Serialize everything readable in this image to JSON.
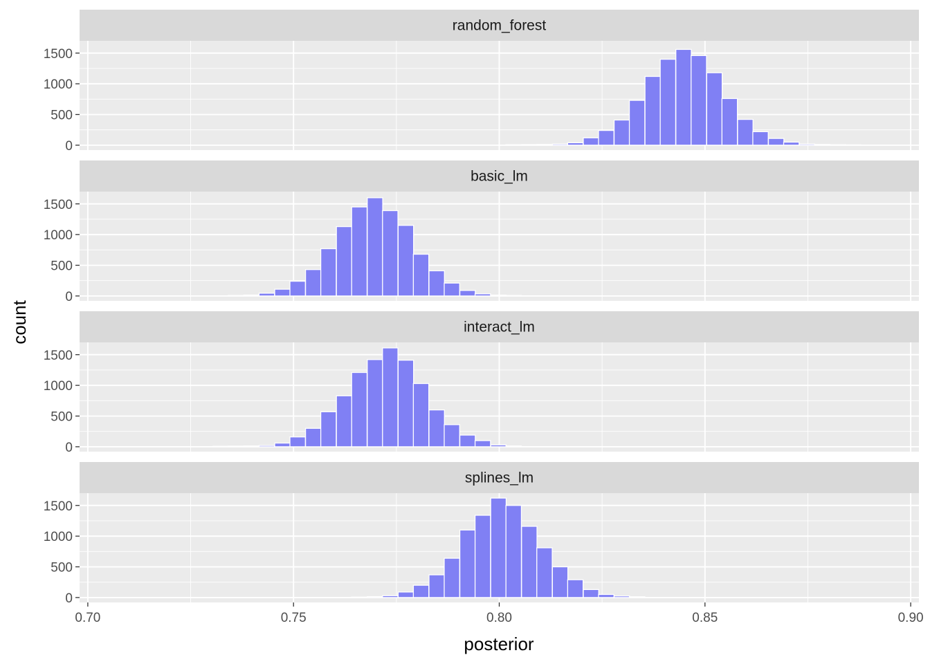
{
  "chart_data": {
    "type": "histogram",
    "xlabel": "posterior",
    "ylabel": "count",
    "xlim": [
      0.698,
      0.902
    ],
    "ylim": [
      -80,
      1700
    ],
    "bin_width": 0.00375,
    "x_ticks": [
      0.7,
      0.75,
      0.8,
      0.85,
      0.9
    ],
    "x_tick_labels": [
      "0.70",
      "0.75",
      "0.80",
      "0.85",
      "0.90"
    ],
    "y_ticks": [
      0,
      500,
      1000,
      1500
    ],
    "y_tick_labels": [
      "0",
      "500",
      "1000",
      "1500"
    ],
    "grid": true,
    "fill_color": "#8080f4",
    "bar_outline": "#ffffff",
    "panel_bg": "#ebebeb",
    "strip_bg": "#d9d9d9",
    "panels": [
      {
        "label": "random_forest",
        "bins": [
          {
            "x": 0.8035,
            "y": 8
          },
          {
            "x": 0.8073,
            "y": 10
          },
          {
            "x": 0.811,
            "y": 12
          },
          {
            "x": 0.8148,
            "y": 18
          },
          {
            "x": 0.8185,
            "y": 40
          },
          {
            "x": 0.8223,
            "y": 120
          },
          {
            "x": 0.826,
            "y": 240
          },
          {
            "x": 0.8298,
            "y": 410
          },
          {
            "x": 0.8335,
            "y": 730
          },
          {
            "x": 0.8373,
            "y": 1120
          },
          {
            "x": 0.841,
            "y": 1400
          },
          {
            "x": 0.8448,
            "y": 1560
          },
          {
            "x": 0.8485,
            "y": 1460
          },
          {
            "x": 0.8523,
            "y": 1180
          },
          {
            "x": 0.856,
            "y": 760
          },
          {
            "x": 0.8598,
            "y": 420
          },
          {
            "x": 0.8635,
            "y": 220
          },
          {
            "x": 0.8673,
            "y": 110
          },
          {
            "x": 0.871,
            "y": 50
          },
          {
            "x": 0.8748,
            "y": 18
          },
          {
            "x": 0.8785,
            "y": 12
          },
          {
            "x": 0.8823,
            "y": 8
          },
          {
            "x": 0.886,
            "y": 6
          }
        ]
      },
      {
        "label": "basic_lm",
        "bins": [
          {
            "x": 0.736,
            "y": 8
          },
          {
            "x": 0.7398,
            "y": 15
          },
          {
            "x": 0.7435,
            "y": 45
          },
          {
            "x": 0.7473,
            "y": 110
          },
          {
            "x": 0.751,
            "y": 240
          },
          {
            "x": 0.7548,
            "y": 430
          },
          {
            "x": 0.7585,
            "y": 770
          },
          {
            "x": 0.7623,
            "y": 1130
          },
          {
            "x": 0.766,
            "y": 1450
          },
          {
            "x": 0.7698,
            "y": 1600
          },
          {
            "x": 0.7735,
            "y": 1390
          },
          {
            "x": 0.7773,
            "y": 1150
          },
          {
            "x": 0.781,
            "y": 680
          },
          {
            "x": 0.7848,
            "y": 410
          },
          {
            "x": 0.7885,
            "y": 210
          },
          {
            "x": 0.7923,
            "y": 90
          },
          {
            "x": 0.796,
            "y": 35
          },
          {
            "x": 0.7998,
            "y": 14
          },
          {
            "x": 0.8035,
            "y": 8
          }
        ]
      },
      {
        "label": "interact_lm",
        "bins": [
          {
            "x": 0.7323,
            "y": 8
          },
          {
            "x": 0.736,
            "y": 10
          },
          {
            "x": 0.7398,
            "y": 12
          },
          {
            "x": 0.7435,
            "y": 20
          },
          {
            "x": 0.7473,
            "y": 60
          },
          {
            "x": 0.751,
            "y": 160
          },
          {
            "x": 0.7548,
            "y": 300
          },
          {
            "x": 0.7585,
            "y": 570
          },
          {
            "x": 0.7623,
            "y": 830
          },
          {
            "x": 0.766,
            "y": 1210
          },
          {
            "x": 0.7698,
            "y": 1420
          },
          {
            "x": 0.7735,
            "y": 1610
          },
          {
            "x": 0.7773,
            "y": 1410
          },
          {
            "x": 0.781,
            "y": 1030
          },
          {
            "x": 0.7848,
            "y": 600
          },
          {
            "x": 0.7885,
            "y": 360
          },
          {
            "x": 0.7923,
            "y": 190
          },
          {
            "x": 0.796,
            "y": 100
          },
          {
            "x": 0.7998,
            "y": 30
          },
          {
            "x": 0.8035,
            "y": 12
          }
        ]
      },
      {
        "label": "splines_lm",
        "bins": [
          {
            "x": 0.766,
            "y": 8
          },
          {
            "x": 0.7698,
            "y": 15
          },
          {
            "x": 0.7735,
            "y": 30
          },
          {
            "x": 0.7773,
            "y": 90
          },
          {
            "x": 0.781,
            "y": 200
          },
          {
            "x": 0.7848,
            "y": 370
          },
          {
            "x": 0.7885,
            "y": 640
          },
          {
            "x": 0.7923,
            "y": 1100
          },
          {
            "x": 0.796,
            "y": 1340
          },
          {
            "x": 0.7998,
            "y": 1620
          },
          {
            "x": 0.8035,
            "y": 1500
          },
          {
            "x": 0.8073,
            "y": 1160
          },
          {
            "x": 0.811,
            "y": 810
          },
          {
            "x": 0.8148,
            "y": 500
          },
          {
            "x": 0.8185,
            "y": 290
          },
          {
            "x": 0.8223,
            "y": 130
          },
          {
            "x": 0.826,
            "y": 50
          },
          {
            "x": 0.8298,
            "y": 25
          },
          {
            "x": 0.8335,
            "y": 12
          }
        ]
      }
    ]
  }
}
